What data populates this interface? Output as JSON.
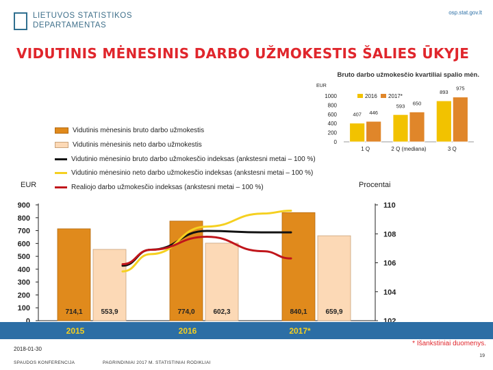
{
  "header": {
    "site": "osp.stat.gov.lt",
    "logo_line1": "LIETUVOS STATISTIKOS",
    "logo_line2": "DEPARTAMENTAS",
    "title": "VIDUTINIS MĖNESINIS DARBO UŽMOKESTIS ŠALIES ŪKYJE"
  },
  "legend": {
    "bruto": "Vidutinis mėnesinis bruto darbo užmokestis",
    "neto": "Vidutinis mėnesinis neto darbo užmokestis",
    "bruto_index": "Vidutinio mėnesinio bruto darbo užmokesčio indeksas (ankstesni metai – 100 %)",
    "neto_index": "Vidutinio mėnesinio neto darbo užmokesčio indeksas (ankstesni metai – 100 %)",
    "real_index": "Realiojo darbo užmokesčio indeksas (ankstesni metai – 100 %)"
  },
  "colors": {
    "bruto": "#e08a1c",
    "neto": "#fcd9b6",
    "bruto_index": "#111111",
    "neto_index": "#f5d020",
    "real_index": "#c0151b",
    "small_2016": "#f2c200",
    "small_2017": "#e0862a",
    "footer": "#2c6ea5"
  },
  "footer": {
    "date": "2018-01-30",
    "left": "SPAUDOS KONFERENCIJA",
    "center": "PAGRINDINIAI 2017 M. STATISTINIAI RODIKLIAI",
    "note": "* Išankstiniai duomenys.",
    "page": "19"
  },
  "chart_data": [
    {
      "type": "bar",
      "title": "Bruto darbo užmokesčio kvartiliai spalio mėn.",
      "ylabel": "EUR",
      "categories": [
        "1 Q",
        "2 Q (mediana)",
        "3 Q"
      ],
      "series": [
        {
          "name": "2016",
          "values": [
            407,
            593,
            893
          ]
        },
        {
          "name": "2017*",
          "values": [
            446,
            650,
            975
          ]
        }
      ],
      "ylim": [
        0,
        1000
      ],
      "yticks": [
        0,
        200,
        400,
        600,
        800,
        1000
      ],
      "value_labels": [
        [
          "407",
          "446"
        ],
        [
          "593",
          "650"
        ],
        [
          "893",
          "975"
        ]
      ],
      "legend_position": "top"
    },
    {
      "type": "bar",
      "ylabel_left": "EUR",
      "ylabel_right": "Procentai",
      "categories": [
        "2015",
        "2016",
        "2017*"
      ],
      "bars": {
        "bruto": [
          714.1,
          774.0,
          840.1
        ],
        "neto": [
          553.9,
          602.3,
          659.9
        ],
        "labels_bruto": [
          "714,1",
          "774,0",
          "840,1"
        ],
        "labels_neto": [
          "553,9",
          "602,3",
          "659,9"
        ]
      },
      "ylim_left": [
        0,
        900
      ],
      "yticks_left": [
        0,
        100,
        200,
        300,
        400,
        500,
        600,
        700,
        800,
        900
      ],
      "ylim_right": [
        102,
        110
      ],
      "yticks_right": [
        102,
        104,
        106,
        108,
        110
      ],
      "lines": [
        {
          "key": "bruto_index",
          "x": [
            0.25,
            0.5,
            1.0,
            1.5,
            1.75
          ],
          "values": [
            105.8,
            106.9,
            108.2,
            108.1,
            108.1
          ]
        },
        {
          "key": "neto_index",
          "x": [
            0.25,
            0.5,
            1.0,
            1.5,
            1.75
          ],
          "values": [
            105.4,
            106.6,
            108.5,
            109.4,
            109.6
          ]
        },
        {
          "key": "real_index",
          "x": [
            0.25,
            0.5,
            1.0,
            1.5,
            1.75
          ],
          "values": [
            105.9,
            106.9,
            107.8,
            106.8,
            106.3
          ]
        }
      ],
      "grid": false
    }
  ]
}
